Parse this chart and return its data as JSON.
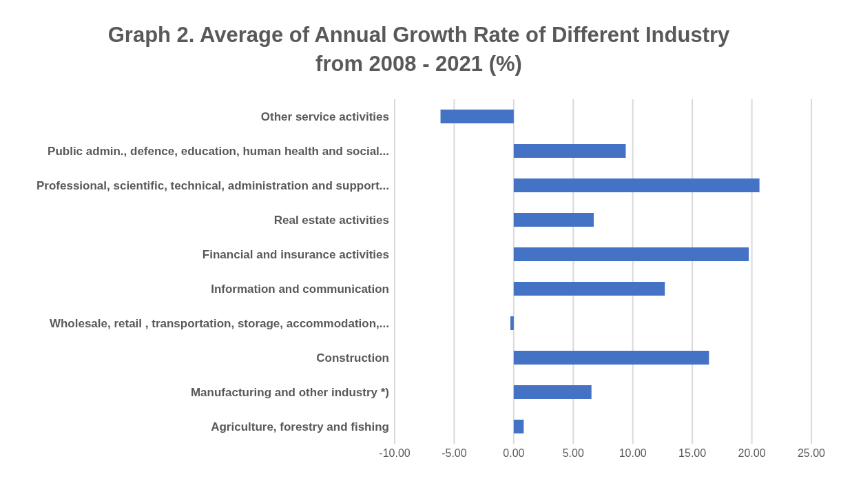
{
  "chart_data": {
    "type": "bar",
    "orientation": "horizontal",
    "title": "Graph 2. Average of Annual Growth Rate of Different Industry from 2008 - 2021 (%)",
    "categories": [
      "Other service activities",
      "Public admin., defence, education, human health and social...",
      "Professional, scientific, technical, administration and support...",
      "Real estate activities",
      "Financial and insurance activities",
      "Information and communication",
      "Wholesale, retail , transportation, storage, accommodation,...",
      "Construction",
      "Manufacturing and other industry *)",
      "Agriculture, forestry and fishing"
    ],
    "values": [
      -6.15,
      9.41,
      20.64,
      6.72,
      19.74,
      12.69,
      -0.28,
      16.4,
      6.53,
      0.84
    ],
    "color": "#4472c4",
    "xlim": [
      -10,
      25
    ],
    "xticks": [
      {
        "value": -10,
        "label": "-10.00"
      },
      {
        "value": -5,
        "label": "-5.00"
      },
      {
        "value": 0,
        "label": "0.00"
      },
      {
        "value": 5,
        "label": "5.00"
      },
      {
        "value": 10,
        "label": "10.00"
      },
      {
        "value": 15,
        "label": "15.00"
      },
      {
        "value": 20,
        "label": "20.00"
      },
      {
        "value": 25,
        "label": "25.00"
      }
    ],
    "grid": "x"
  }
}
